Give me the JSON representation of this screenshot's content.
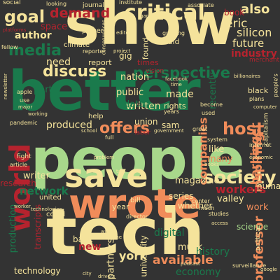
{
  "background": "#333333",
  "palette": {
    "green": "#1a7a4c",
    "cream": "#f5e39b",
    "lime": "#a8d88b",
    "orange": "#f08c5a",
    "red": "#b5232e",
    "mint": "#c8e8a0"
  },
  "words": [
    {
      "text": "show",
      "color": "cream"
    },
    {
      "text": "better",
      "color": "green"
    },
    {
      "text": "people",
      "color": "lime"
    },
    {
      "text": "tech",
      "color": "cream"
    },
    {
      "text": "wrote",
      "color": "orange"
    },
    {
      "text": "save",
      "color": "cream"
    },
    {
      "text": "world",
      "color": "red"
    },
    {
      "text": "critical",
      "color": "cream"
    },
    {
      "text": "society",
      "color": "cream"
    },
    {
      "text": "perspective",
      "color": "green"
    },
    {
      "text": "goal",
      "color": "cream"
    },
    {
      "text": "demand",
      "color": "red"
    },
    {
      "text": "media",
      "color": "green"
    },
    {
      "text": "discuss",
      "color": "cream"
    },
    {
      "text": "offers",
      "color": "orange"
    },
    {
      "text": "host",
      "color": "orange"
    },
    {
      "text": "author",
      "color": "cream"
    },
    {
      "text": "also",
      "color": "cream"
    },
    {
      "text": "eric",
      "color": "cream"
    },
    {
      "text": "silicon",
      "color": "cream"
    },
    {
      "text": "future",
      "color": "cream"
    },
    {
      "text": "industry",
      "color": "red"
    },
    {
      "text": "book",
      "color": "red"
    },
    {
      "text": "inspiring",
      "color": "orange"
    },
    {
      "text": "harbinger",
      "color": "orange"
    },
    {
      "text": "professor",
      "color": "orange"
    },
    {
      "text": "companies",
      "color": "orange"
    },
    {
      "text": "network",
      "color": "green"
    },
    {
      "text": "workers",
      "color": "red"
    },
    {
      "text": "magazine",
      "color": "cream"
    },
    {
      "text": "available",
      "color": "orange"
    },
    {
      "text": "partnership",
      "color": "cream"
    },
    {
      "text": "york",
      "color": "cream"
    },
    {
      "text": "economy",
      "color": "green"
    },
    {
      "text": "history",
      "color": "green"
    },
    {
      "text": "musk",
      "color": "cream"
    },
    {
      "text": "written",
      "color": "cream"
    },
    {
      "text": "produced",
      "color": "cream"
    },
    {
      "text": "public",
      "color": "cream"
    },
    {
      "text": "data",
      "color": "green"
    },
    {
      "text": "made",
      "color": "cream"
    },
    {
      "text": "nation",
      "color": "cream"
    },
    {
      "text": "need",
      "color": "cream"
    },
    {
      "text": "part",
      "color": "green"
    },
    {
      "text": "writer",
      "color": "cream"
    },
    {
      "text": "research",
      "color": "red"
    },
    {
      "text": "production",
      "color": "green"
    },
    {
      "text": "transcripts",
      "color": "red"
    },
    {
      "text": "new",
      "color": "red"
    },
    {
      "text": "back",
      "color": "cream"
    },
    {
      "text": "technology",
      "color": "cream"
    },
    {
      "text": "university",
      "color": "cream"
    },
    {
      "text": "digital",
      "color": "green"
    },
    {
      "text": "work",
      "color": "orange"
    },
    {
      "text": "science",
      "color": "lime"
    },
    {
      "text": "valley",
      "color": "cream"
    },
    {
      "text": "human",
      "color": "cream"
    },
    {
      "text": "series",
      "color": "cream"
    },
    {
      "text": "whether",
      "color": "cream"
    },
    {
      "text": "like",
      "color": "cream"
    },
    {
      "text": "many",
      "color": "orange"
    },
    {
      "text": "rights",
      "color": "cream"
    },
    {
      "text": "union",
      "color": "cream"
    },
    {
      "text": "gig",
      "color": "cream"
    },
    {
      "text": "sam",
      "color": "cream"
    },
    {
      "text": "recently",
      "color": "green"
    },
    {
      "text": "report",
      "color": "cream"
    },
    {
      "text": "times",
      "color": "red"
    },
    {
      "text": "found",
      "color": "cream"
    },
    {
      "text": "space",
      "color": "red"
    },
    {
      "text": "power",
      "color": "cream"
    },
    {
      "text": "climate",
      "color": "cream"
    },
    {
      "text": "journalist",
      "color": "cream"
    },
    {
      "text": "associate",
      "color": "cream"
    },
    {
      "text": "social",
      "color": "cream"
    },
    {
      "text": "fellow",
      "color": "cream"
    },
    {
      "text": "said",
      "color": "cream"
    },
    {
      "text": "growing",
      "color": "cream"
    },
    {
      "text": "institute",
      "color": "cream"
    },
    {
      "text": "looking",
      "color": "cream"
    },
    {
      "text": "platforms",
      "color": "red"
    },
    {
      "text": "black",
      "color": "cream"
    },
    {
      "text": "billionaires",
      "color": "cream"
    },
    {
      "text": "merchant",
      "color": "red"
    },
    {
      "text": "people's",
      "color": "cream"
    },
    {
      "text": "capitalism",
      "color": "cream"
    },
    {
      "text": "pandemic",
      "color": "cream"
    },
    {
      "text": "labor",
      "color": "red"
    },
    {
      "text": "help",
      "color": "cream"
    },
    {
      "text": "school",
      "color": "cream"
    },
    {
      "text": "government",
      "color": "cream"
    },
    {
      "text": "great",
      "color": "cream"
    },
    {
      "text": "system",
      "color": "cream"
    },
    {
      "text": "political",
      "color": "cream"
    },
    {
      "text": "center",
      "color": "cream"
    },
    {
      "text": "full",
      "color": "cream"
    },
    {
      "text": "director",
      "color": "cream"
    },
    {
      "text": "surveillance",
      "color": "cream"
    },
    {
      "text": "united",
      "color": "cream"
    },
    {
      "text": "year",
      "color": "cream"
    },
    {
      "text": "bill",
      "color": "cream"
    },
    {
      "text": "could",
      "color": "cream"
    },
    {
      "text": "problem",
      "color": "cream"
    },
    {
      "text": "fight",
      "color": "cream"
    },
    {
      "text": "worker",
      "color": "cream"
    },
    {
      "text": "apple",
      "color": "cream"
    },
    {
      "text": "use",
      "color": "cream"
    },
    {
      "text": "major",
      "color": "cream"
    },
    {
      "text": "vision",
      "color": "red"
    },
    {
      "text": "project",
      "color": "cream"
    },
    {
      "text": "editor",
      "color": "cream"
    },
    {
      "text": "game",
      "color": "cream"
    },
    {
      "text": "drivers",
      "color": "cream"
    },
    {
      "text": "city",
      "color": "cream"
    },
    {
      "text": "white",
      "color": "cream"
    },
    {
      "text": "machine",
      "color": "cream"
    },
    {
      "text": "studies",
      "color": "cream"
    },
    {
      "text": "much",
      "color": "cream"
    },
    {
      "text": "plans",
      "color": "cream"
    },
    {
      "text": "years",
      "color": "cream"
    },
    {
      "text": "become",
      "color": "cream"
    },
    {
      "text": "used",
      "color": "cream"
    },
    {
      "text": "books",
      "color": "cream"
    },
    {
      "text": "article",
      "color": "cream"
    },
    {
      "text": "molly",
      "color": "cream"
    },
    {
      "text": "technologies",
      "color": "cream"
    },
    {
      "text": "newsletter",
      "color": "cream"
    },
    {
      "text": "working",
      "color": "cream"
    },
    {
      "text": "tale",
      "color": "cream"
    },
    {
      "text": "reporter",
      "color": "cream"
    },
    {
      "text": "consequences",
      "color": "cream"
    },
    {
      "text": "computer",
      "color": "cream"
    },
    {
      "text": "internet",
      "color": "cream"
    },
    {
      "text": "podcast",
      "color": "cream"
    },
    {
      "text": "access",
      "color": "cream"
    },
    {
      "text": "economic",
      "color": "cream"
    },
    {
      "text": "google",
      "color": "cream"
    },
    {
      "text": "facebook",
      "color": "cream"
    },
    {
      "text": "time",
      "color": "cream"
    },
    {
      "text": "users",
      "color": "cream"
    }
  ]
}
